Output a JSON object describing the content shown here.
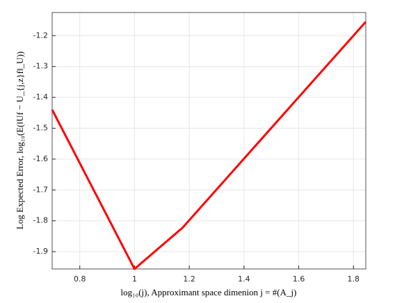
{
  "chart_data": {
    "type": "line",
    "xlabel": "log₁₀(j), Approximant space dimenion j = #(A_j)",
    "ylabel": "Log Expected Error, log₁₀(E(‖Uf − U_{j,z}f‖_U))",
    "x": [
      0.699,
      1.0,
      1.176,
      1.845
    ],
    "series": [
      {
        "color": "#ff0000",
        "values": [
          -1.44,
          -1.956,
          -1.822,
          -1.155
        ]
      }
    ],
    "xlim": [
      0.699,
      1.845
    ],
    "xticks": [
      0.8,
      1,
      1.2,
      1.4,
      1.6,
      1.8
    ],
    "ylim": [
      -1.956,
      -1.125
    ],
    "yticks": [
      -1.9,
      -1.8,
      -1.7,
      -1.6,
      -1.5,
      -1.4,
      -1.3,
      -1.2
    ],
    "grid": true
  }
}
